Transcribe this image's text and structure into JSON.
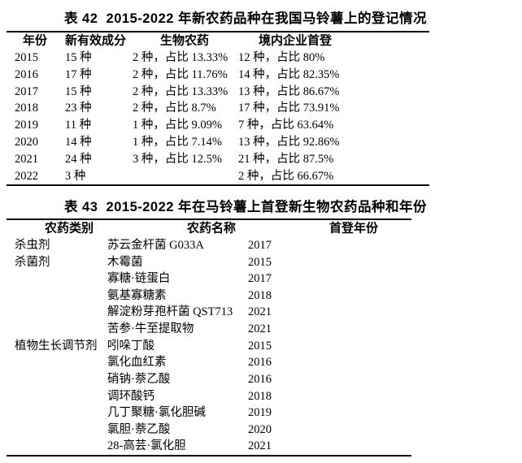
{
  "page": {
    "background_color": "#ffffff",
    "text_color": "#000000"
  },
  "table42": {
    "title": "表 42  2015-2022 年新农药品种在我国马铃薯上的登记情况",
    "headers": [
      "年份",
      "新有效成分",
      "生物农药",
      "境内企业首登"
    ],
    "rows": [
      [
        "2015",
        "15 种",
        "2 种，占比 13.33%",
        "12 种，占比 80%"
      ],
      [
        "2016",
        "17 种",
        "2 种，占比 11.76%",
        "14 种，占比 82.35%"
      ],
      [
        "2017",
        "15 种",
        "2 种，占比 13.33%",
        "13 种，占比 86.67%"
      ],
      [
        "2018",
        "23 种",
        "2 种，占比 8.7%",
        "17 种，占比 73.91%"
      ],
      [
        "2019",
        "11 种",
        "1 种，占比 9.09%",
        "7 种，占比 63.64%"
      ],
      [
        "2020",
        "14 种",
        "1 种，占比 7.14%",
        "13 种，占比 92.86%"
      ],
      [
        "2021",
        "24 种",
        "3 种，占比 12.5%",
        "21 种，占比 87.5%"
      ],
      [
        "2022",
        "3 种",
        "",
        "2 种，占比 66.67%"
      ]
    ]
  },
  "table43": {
    "title": "表 43  2015-2022 年在马铃薯上首登新生物农药品种和年份",
    "headers": [
      "农药类别",
      "农药名称",
      "首登年份"
    ],
    "rows": [
      [
        "杀虫剂",
        "苏云金杆菌 G033A",
        "2017"
      ],
      [
        "杀菌剂",
        "木霉菌",
        "2015"
      ],
      [
        "",
        "寡糖·链蛋白",
        "2017"
      ],
      [
        "",
        "氨基寡糖素",
        "2018"
      ],
      [
        "",
        "解淀粉芽孢杆菌 QST713",
        "2021"
      ],
      [
        "",
        "苦参·牛至提取物",
        "2021"
      ],
      [
        "植物生长调节剂",
        "吲哚丁酸",
        "2015"
      ],
      [
        "",
        "氯化血红素",
        "2016"
      ],
      [
        "",
        "硝钠·萘乙酸",
        "2016"
      ],
      [
        "",
        "调环酸钙",
        "2018"
      ],
      [
        "",
        "几丁聚糖·氯化胆碱",
        "2019"
      ],
      [
        "",
        "氯胆·萘乙酸",
        "2020"
      ],
      [
        "",
        "28-高芸·氯化胆",
        "2021"
      ]
    ]
  }
}
